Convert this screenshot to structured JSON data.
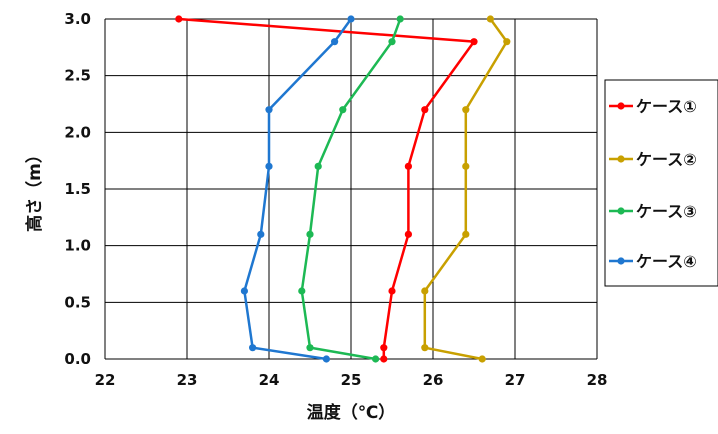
{
  "chart_data": {
    "type": "line",
    "xlabel": "温度（℃）",
    "ylabel": "高さ（m）",
    "xlim": [
      22,
      28
    ],
    "ylim": [
      0.0,
      3.0
    ],
    "x_ticks": [
      "22",
      "23",
      "24",
      "25",
      "26",
      "27",
      "28"
    ],
    "y_ticks": [
      "0.0",
      "0.5",
      "1.0",
      "1.5",
      "2.0",
      "2.5",
      "3.0"
    ],
    "grid": true,
    "legend_position": "right",
    "series": [
      {
        "name": "ケース①",
        "color": "#ff0000",
        "points": [
          {
            "x": 25.4,
            "y": 0.0
          },
          {
            "x": 25.4,
            "y": 0.1
          },
          {
            "x": 25.5,
            "y": 0.6
          },
          {
            "x": 25.7,
            "y": 1.1
          },
          {
            "x": 25.7,
            "y": 1.7
          },
          {
            "x": 25.9,
            "y": 2.2
          },
          {
            "x": 26.5,
            "y": 2.8
          },
          {
            "x": 22.9,
            "y": 3.0
          }
        ]
      },
      {
        "name": "ケース②",
        "color": "#c8a000",
        "points": [
          {
            "x": 26.6,
            "y": 0.0
          },
          {
            "x": 25.9,
            "y": 0.1
          },
          {
            "x": 25.9,
            "y": 0.6
          },
          {
            "x": 26.4,
            "y": 1.1
          },
          {
            "x": 26.4,
            "y": 1.7
          },
          {
            "x": 26.4,
            "y": 2.2
          },
          {
            "x": 26.9,
            "y": 2.8
          },
          {
            "x": 26.7,
            "y": 3.0
          }
        ]
      },
      {
        "name": "ケース③",
        "color": "#1db954",
        "points": [
          {
            "x": 25.3,
            "y": 0.0
          },
          {
            "x": 24.5,
            "y": 0.1
          },
          {
            "x": 24.4,
            "y": 0.6
          },
          {
            "x": 24.5,
            "y": 1.1
          },
          {
            "x": 24.6,
            "y": 1.7
          },
          {
            "x": 24.9,
            "y": 2.2
          },
          {
            "x": 25.5,
            "y": 2.8
          },
          {
            "x": 25.6,
            "y": 3.0
          }
        ]
      },
      {
        "name": "ケース④",
        "color": "#1f77d0",
        "points": [
          {
            "x": 24.7,
            "y": 0.0
          },
          {
            "x": 23.8,
            "y": 0.1
          },
          {
            "x": 23.7,
            "y": 0.6
          },
          {
            "x": 23.9,
            "y": 1.1
          },
          {
            "x": 24.0,
            "y": 1.7
          },
          {
            "x": 24.0,
            "y": 2.2
          },
          {
            "x": 24.8,
            "y": 2.8
          },
          {
            "x": 25.0,
            "y": 3.0
          }
        ]
      }
    ]
  }
}
